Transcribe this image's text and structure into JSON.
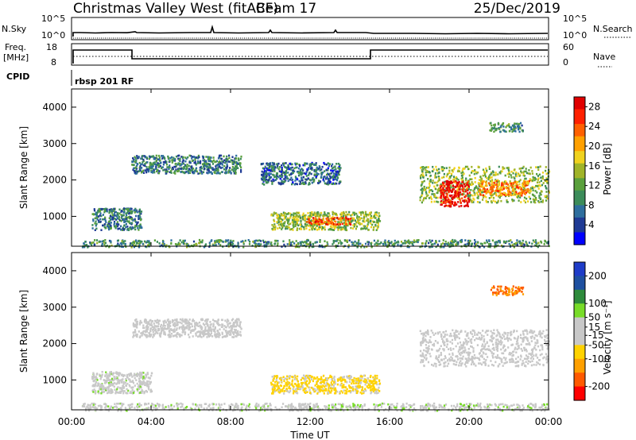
{
  "header": {
    "station": "Christmas Valley West (fitACF)",
    "beam": "Beam 17",
    "date": "25/Dec/2019"
  },
  "strip_panels": {
    "nsky": {
      "label": "N.Sky",
      "ticks": [
        "10^5",
        "10^0"
      ]
    },
    "nsearch": {
      "label": "N.Search",
      "ticks": [
        "10^5",
        "10^0"
      ]
    },
    "freq": {
      "label_line1": "Freq.",
      "label_line2": "[MHz]",
      "ticks": [
        "18",
        "8"
      ]
    },
    "nave": {
      "label": "Nave",
      "ticks": [
        "60",
        "0"
      ]
    },
    "cpid": {
      "label": "CPID",
      "value": "rbsp 201 RF"
    }
  },
  "colors": {
    "power": [
      "#0000ff",
      "#1f3a94",
      "#2e6e9e",
      "#3c8c5a",
      "#5aa03c",
      "#a0b428",
      "#f0d21e",
      "#ffa000",
      "#ff6000",
      "#ff2000",
      "#e00000"
    ],
    "velocity": [
      "#ff0000",
      "#ff5a00",
      "#ffa000",
      "#ffd200",
      "#c8c8c8",
      "#c8c8c8",
      "#78dc28",
      "#2e8b3c",
      "#1e50a0",
      "#1e3cc8"
    ]
  },
  "chart_data": [
    {
      "type": "heatmap",
      "panel": "power",
      "ylabel": "Slant Range [km]",
      "xlabel": "Time UT",
      "x_ticks": [
        "00:00",
        "04:00",
        "08:00",
        "12:00",
        "16:00",
        "20:00",
        "00:00"
      ],
      "xlim_hours": [
        0,
        24
      ],
      "ylim_km": [
        180,
        4500
      ],
      "y_ticks": [
        1000,
        2000,
        3000,
        4000
      ],
      "colorbar": {
        "label": "Power [dB]",
        "ticks": [
          4,
          8,
          12,
          16,
          20,
          24,
          28
        ],
        "range": [
          0,
          30
        ]
      },
      "echo_regions": [
        {
          "time_start": 0.5,
          "time_end": 24,
          "range_start": 180,
          "range_end": 380,
          "value": 10
        },
        {
          "time_start": 1.0,
          "time_end": 3.5,
          "range_start": 650,
          "range_end": 1250,
          "value": 8
        },
        {
          "time_start": 3.0,
          "time_end": 8.5,
          "range_start": 2200,
          "range_end": 2700,
          "value": 8
        },
        {
          "time_start": 9.5,
          "time_end": 13.5,
          "range_start": 1900,
          "range_end": 2500,
          "value": 7
        },
        {
          "time_start": 10.0,
          "time_end": 15.5,
          "range_start": 650,
          "range_end": 1150,
          "value": 14
        },
        {
          "time_start": 11.8,
          "time_end": 14.0,
          "range_start": 800,
          "range_end": 1000,
          "value": 24
        },
        {
          "time_start": 17.5,
          "time_end": 24.0,
          "range_start": 1400,
          "range_end": 2400,
          "value": 14
        },
        {
          "time_start": 18.5,
          "time_end": 20.0,
          "range_start": 1300,
          "range_end": 2000,
          "value": 28
        },
        {
          "time_start": 20.5,
          "time_end": 23.0,
          "range_start": 1600,
          "range_end": 2000,
          "value": 22
        },
        {
          "time_start": 21.0,
          "time_end": 22.7,
          "range_start": 3350,
          "range_end": 3600,
          "value": 10
        }
      ]
    },
    {
      "type": "heatmap",
      "panel": "velocity",
      "ylabel": "Slant Range [km]",
      "xlabel": "Time UT",
      "x_ticks": [
        "00:00",
        "04:00",
        "08:00",
        "12:00",
        "16:00",
        "20:00",
        "00:00"
      ],
      "xlim_hours": [
        0,
        24
      ],
      "ylim_km": [
        180,
        4500
      ],
      "y_ticks": [
        1000,
        2000,
        3000,
        4000
      ],
      "colorbar": {
        "label": "Velocity [m s⁻¹]",
        "ticks": [
          200,
          100,
          50,
          15,
          -15,
          -50,
          -100,
          -200
        ],
        "range": [
          -250,
          250
        ]
      },
      "echo_regions": [
        {
          "time_start": 0.5,
          "time_end": 24,
          "range_start": 180,
          "range_end": 380,
          "value": 30
        },
        {
          "time_start": 1.0,
          "time_end": 4.0,
          "range_start": 650,
          "range_end": 1250,
          "value": 25
        },
        {
          "time_start": 3.0,
          "time_end": 8.5,
          "range_start": 2200,
          "range_end": 2700,
          "value": 0
        },
        {
          "time_start": 10.0,
          "time_end": 15.5,
          "range_start": 650,
          "range_end": 1150,
          "value": -60
        },
        {
          "time_start": 17.5,
          "time_end": 24.0,
          "range_start": 1400,
          "range_end": 2400,
          "value": 0
        },
        {
          "time_start": 21.0,
          "time_end": 22.7,
          "range_start": 3350,
          "range_end": 3600,
          "value": -150
        }
      ]
    }
  ]
}
